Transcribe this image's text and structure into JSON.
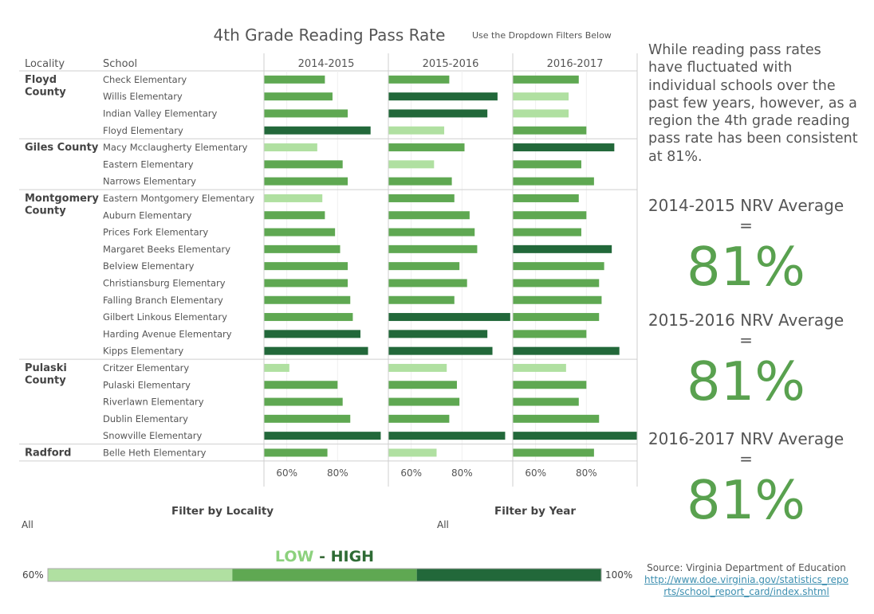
{
  "header": {
    "title": "4th Grade Reading Pass Rate",
    "subtitle": "Use the Dropdown Filters Below"
  },
  "narrative": "While reading pass rates have fluctuated with individual schools over the past few years, however, as a region the 4th grade reading pass rate has been consistent at 81%.",
  "kpis": [
    {
      "label": "2014-2015 NRV Average =",
      "value": "81%"
    },
    {
      "label": "2015-2016 NRV Average =",
      "value": "81%"
    },
    {
      "label": "2016-2017 NRV Average =",
      "value": "81%"
    }
  ],
  "filters": {
    "locality": {
      "title": "Filter by Locality",
      "value": "All"
    },
    "year": {
      "title": "Filter by Year",
      "value": "All"
    }
  },
  "legend": {
    "low": "LOW",
    "dash": " - ",
    "high": "HIGH",
    "min_label": "60%",
    "max_label": "100%",
    "colors": [
      "#b0e0a1",
      "#5fa852",
      "#22683a"
    ]
  },
  "source": {
    "text": "Source: Virginia Department of Education",
    "link": "http://www.doe.virginia.gov/statistics_reports/school_report_card/index.shtml"
  },
  "colors": {
    "low": "#b0e0a1",
    "mid": "#5fa852",
    "high": "#22683a",
    "text": "#555555",
    "accent_big_number": "#59a14f"
  },
  "chart_data": {
    "type": "bar",
    "orientation": "horizontal",
    "row_headers": [
      "Locality",
      "School"
    ],
    "columns": [
      "2014-2015",
      "2015-2016",
      "2016-2017"
    ],
    "xlim": [
      51,
      100
    ],
    "x_ticks": [
      60,
      80
    ],
    "x_tick_labels": [
      "60%",
      "80%"
    ],
    "color_scale": "color tier from legend LOW (light) to HIGH (dark), 60% to 100%",
    "groups": [
      {
        "locality": "Floyd County",
        "schools": [
          {
            "name": "Check Elementary",
            "values": [
              75,
              75,
              77
            ],
            "tiers": [
              "mid",
              "mid",
              "mid"
            ]
          },
          {
            "name": "Willis Elementary",
            "values": [
              78,
              94,
              73
            ],
            "tiers": [
              "mid",
              "high",
              "low"
            ]
          },
          {
            "name": "Indian Valley Elementary",
            "values": [
              84,
              90,
              73
            ],
            "tiers": [
              "mid",
              "high",
              "low"
            ]
          },
          {
            "name": "Floyd Elementary",
            "values": [
              93,
              73,
              80
            ],
            "tiers": [
              "high",
              "low",
              "mid"
            ]
          }
        ]
      },
      {
        "locality": "Giles County",
        "schools": [
          {
            "name": "Macy Mcclaugherty Elementary",
            "values": [
              72,
              81,
              91
            ],
            "tiers": [
              "low",
              "mid",
              "high"
            ]
          },
          {
            "name": "Eastern Elementary",
            "values": [
              82,
              69,
              78
            ],
            "tiers": [
              "mid",
              "low",
              "mid"
            ]
          },
          {
            "name": "Narrows Elementary",
            "values": [
              84,
              76,
              83
            ],
            "tiers": [
              "mid",
              "mid",
              "mid"
            ]
          }
        ]
      },
      {
        "locality": "Montgomery County",
        "schools": [
          {
            "name": "Eastern Montgomery Elementary",
            "values": [
              74,
              77,
              77
            ],
            "tiers": [
              "low",
              "mid",
              "mid"
            ]
          },
          {
            "name": "Auburn Elementary",
            "values": [
              75,
              83,
              80
            ],
            "tiers": [
              "mid",
              "mid",
              "mid"
            ]
          },
          {
            "name": "Prices Fork Elementary",
            "values": [
              79,
              85,
              78
            ],
            "tiers": [
              "mid",
              "mid",
              "mid"
            ]
          },
          {
            "name": "Margaret Beeks Elementary",
            "values": [
              81,
              86,
              90
            ],
            "tiers": [
              "mid",
              "mid",
              "high"
            ]
          },
          {
            "name": "Belview Elementary",
            "values": [
              84,
              79,
              87
            ],
            "tiers": [
              "mid",
              "mid",
              "mid"
            ]
          },
          {
            "name": "Christiansburg Elementary",
            "values": [
              84,
              82,
              85
            ],
            "tiers": [
              "mid",
              "mid",
              "mid"
            ]
          },
          {
            "name": "Falling Branch Elementary",
            "values": [
              85,
              77,
              86
            ],
            "tiers": [
              "mid",
              "mid",
              "mid"
            ]
          },
          {
            "name": "Gilbert Linkous Elementary",
            "values": [
              86,
              99,
              85
            ],
            "tiers": [
              "mid",
              "high",
              "mid"
            ]
          },
          {
            "name": "Harding Avenue Elementary",
            "values": [
              89,
              90,
              80
            ],
            "tiers": [
              "high",
              "high",
              "mid"
            ]
          },
          {
            "name": "Kipps Elementary",
            "values": [
              92,
              92,
              93
            ],
            "tiers": [
              "high",
              "high",
              "high"
            ]
          }
        ]
      },
      {
        "locality": "Pulaski County",
        "schools": [
          {
            "name": "Critzer Elementary",
            "values": [
              61,
              74,
              72
            ],
            "tiers": [
              "low",
              "low",
              "low"
            ]
          },
          {
            "name": "Pulaski Elementary",
            "values": [
              80,
              78,
              80
            ],
            "tiers": [
              "mid",
              "mid",
              "mid"
            ]
          },
          {
            "name": "Riverlawn Elementary",
            "values": [
              82,
              79,
              77
            ],
            "tiers": [
              "mid",
              "mid",
              "mid"
            ]
          },
          {
            "name": "Dublin Elementary",
            "values": [
              85,
              75,
              85
            ],
            "tiers": [
              "mid",
              "mid",
              "mid"
            ]
          },
          {
            "name": "Snowville Elementary",
            "values": [
              97,
              97,
              100
            ],
            "tiers": [
              "high",
              "high",
              "high"
            ]
          }
        ]
      },
      {
        "locality": "Radford",
        "schools": [
          {
            "name": "Belle Heth Elementary",
            "values": [
              76,
              70,
              83
            ],
            "tiers": [
              "mid",
              "low",
              "mid"
            ]
          }
        ]
      }
    ]
  }
}
